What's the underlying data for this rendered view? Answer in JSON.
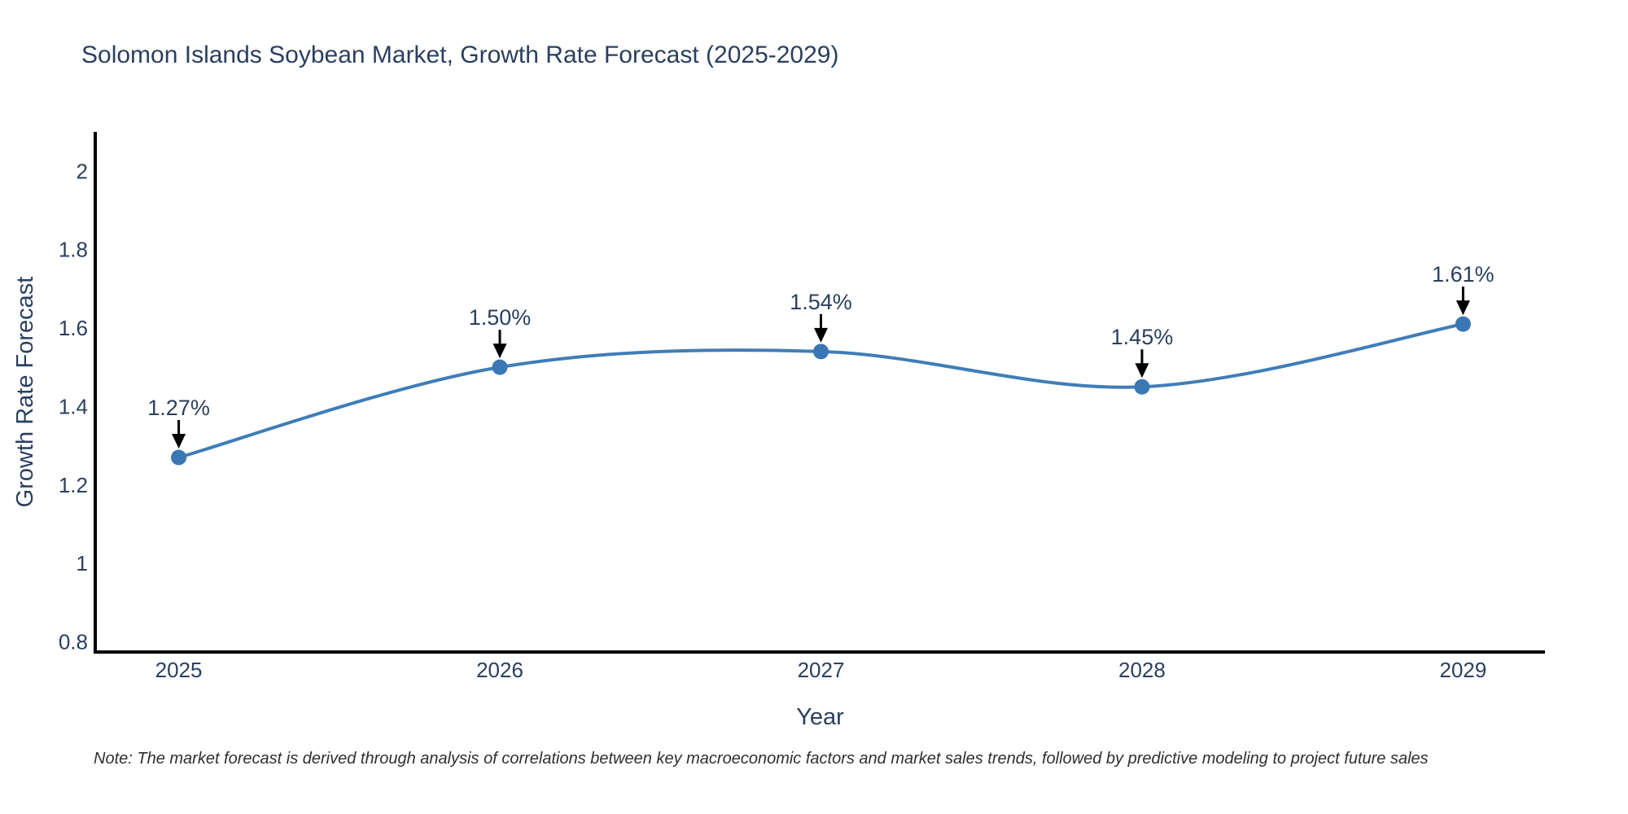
{
  "title": "Solomon Islands Soybean Market, Growth Rate Forecast (2025-2029)",
  "note": "Note: The market forecast is derived through analysis of correlations between key macroeconomic factors and market sales trends, followed by predictive modeling to project future sales",
  "chart_data": {
    "type": "line",
    "title": "Solomon Islands Soybean Market, Growth Rate Forecast (2025-2029)",
    "xlabel": "Year",
    "ylabel": "Growth Rate Forecast",
    "x": [
      2025,
      2026,
      2027,
      2028,
      2029
    ],
    "series": [
      {
        "name": "Growth Rate Forecast",
        "values": [
          1.27,
          1.5,
          1.54,
          1.45,
          1.61
        ]
      }
    ],
    "point_labels": [
      "1.27%",
      "1.50%",
      "1.54%",
      "1.45%",
      "1.61%"
    ],
    "x_tick_labels": [
      "2025",
      "2026",
      "2027",
      "2028",
      "2029"
    ],
    "y_ticks": [
      0.8,
      1,
      1.2,
      1.4,
      1.6,
      1.8,
      2
    ],
    "y_tick_labels": [
      "0.8",
      "1",
      "1.2",
      "1.4",
      "1.6",
      "1.8",
      "2"
    ],
    "xlim": [
      2024.74,
      2029.255
    ],
    "ylim": [
      0.774,
      2.1
    ],
    "line_shape": "spline",
    "grid": false,
    "legend": false,
    "annotation_arrows": true,
    "colors": {
      "line": "#3f7db8",
      "marker": "#3a77b4",
      "arrow": "#000000",
      "axis": "#000000",
      "label_text": "#2a3f5f",
      "note_text": "#2f2f2f",
      "background": "#ffffff"
    }
  }
}
